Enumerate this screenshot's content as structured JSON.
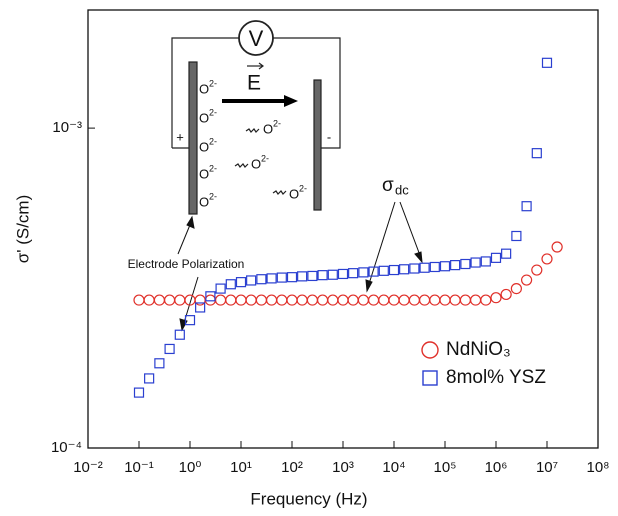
{
  "chart_data": {
    "type": "scatter",
    "x_label": "Frequency (Hz)",
    "y_label": "σ' (S/cm)",
    "log_x": true,
    "log_y": true,
    "legend": "lower right",
    "xlim": [
      0.01,
      100000000
    ],
    "ylim": [
      0.0001,
      0.00234
    ],
    "xticks": [
      {
        "value": 0.01,
        "label": "10⁻²"
      },
      {
        "value": 0.1,
        "label": "10⁻¹"
      },
      {
        "value": 1,
        "label": "10⁰"
      },
      {
        "value": 10,
        "label": "10¹"
      },
      {
        "value": 100,
        "label": "10²"
      },
      {
        "value": 1000,
        "label": "10³"
      },
      {
        "value": 10000,
        "label": "10⁴"
      },
      {
        "value": 100000,
        "label": "10⁵"
      },
      {
        "value": 1000000,
        "label": "10⁶"
      },
      {
        "value": 10000000,
        "label": "10⁷"
      },
      {
        "value": 100000000,
        "label": "10⁸"
      }
    ],
    "yticks": [
      {
        "value": 0.0001,
        "label": "10⁻⁴"
      },
      {
        "value": 0.001,
        "label": "10⁻³"
      }
    ],
    "series": [
      {
        "name": "NdNiO₃",
        "color": "#e0302a",
        "marker": "circle",
        "x": [
          0.1,
          0.158,
          0.251,
          0.398,
          0.631,
          1,
          1.58,
          2.51,
          3.98,
          6.31,
          10,
          15.8,
          25.1,
          39.8,
          63.1,
          100,
          158,
          251,
          398,
          631,
          1000,
          1580,
          2510,
          3980,
          6310,
          10000,
          15800,
          25100,
          39800,
          63100,
          100000,
          158000,
          251000,
          398000,
          631000,
          1000000,
          1580000,
          2510000,
          3980000,
          6310000,
          10000000,
          15800000
        ],
        "values": [
          0.00029,
          0.00029,
          0.00029,
          0.00029,
          0.00029,
          0.00029,
          0.00029,
          0.00029,
          0.00029,
          0.00029,
          0.00029,
          0.00029,
          0.00029,
          0.00029,
          0.00029,
          0.00029,
          0.00029,
          0.00029,
          0.00029,
          0.00029,
          0.00029,
          0.00029,
          0.00029,
          0.00029,
          0.00029,
          0.00029,
          0.00029,
          0.00029,
          0.00029,
          0.00029,
          0.00029,
          0.00029,
          0.00029,
          0.00029,
          0.00029,
          0.000295,
          0.000302,
          0.000315,
          0.000335,
          0.00036,
          0.00039,
          0.000425
        ]
      },
      {
        "name": "8mol% YSZ",
        "color": "#2a3fd0",
        "marker": "square",
        "x": [
          0.1,
          0.158,
          0.251,
          0.398,
          0.631,
          1,
          1.58,
          2.51,
          3.98,
          6.31,
          10,
          15.8,
          25.1,
          39.8,
          63.1,
          100,
          158,
          251,
          398,
          631,
          1000,
          1580,
          2510,
          3980,
          6310,
          10000,
          15800,
          25100,
          39800,
          63100,
          100000,
          158000,
          251000,
          398000,
          631000,
          1000000,
          1580000,
          2510000,
          3980000,
          6310000,
          10000000
        ],
        "values": [
          0.000149,
          0.000165,
          0.000184,
          0.000204,
          0.000226,
          0.000251,
          0.000275,
          0.000298,
          0.000315,
          0.000325,
          0.00033,
          0.000334,
          0.000337,
          0.000339,
          0.000341,
          0.000342,
          0.000344,
          0.000345,
          0.000347,
          0.000348,
          0.00035,
          0.000352,
          0.000354,
          0.000356,
          0.000358,
          0.00036,
          0.000362,
          0.000364,
          0.000366,
          0.000368,
          0.00037,
          0.000373,
          0.000376,
          0.00038,
          0.000383,
          0.000393,
          0.000405,
          0.00046,
          0.00057,
          0.000835,
          0.0016
        ]
      }
    ],
    "annotations": {
      "polarization": "Electrode Polarization",
      "sigma": "σ",
      "sigma_sub": "dc"
    },
    "inset": {
      "voltmeter": "V",
      "field": "E",
      "ion": "O",
      "charge": "2-",
      "plus": "+",
      "minus": "-"
    }
  }
}
